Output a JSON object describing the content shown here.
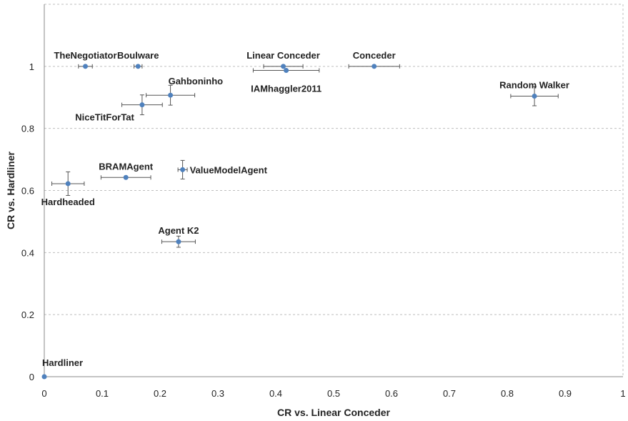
{
  "chart_data": {
    "type": "scatter",
    "title": "",
    "xlabel": "CR vs. Linear Conceder",
    "ylabel": "CR vs. Hardliner",
    "xlim": [
      0,
      1
    ],
    "ylim": [
      0,
      1.2
    ],
    "x_ticks": [
      "0",
      "0.1",
      "0.2",
      "0.3",
      "0.4",
      "0.5",
      "0.6",
      "0.7",
      "0.8",
      "0.9",
      "1"
    ],
    "y_ticks": [
      "0",
      "0.2",
      "0.4",
      "0.6",
      "0.8",
      "1"
    ],
    "y_tick_values": [
      0,
      0.2,
      0.4,
      0.6,
      0.8,
      1
    ],
    "grid": "horizontal dashed",
    "marker_color": "#4f81bd",
    "error_bar_color": "#555555",
    "points": [
      {
        "label": "TheNegotiator",
        "x": 0.071,
        "y": 1.0,
        "xerr": 0.012,
        "yerr": 0.0,
        "label_pos": "above"
      },
      {
        "label": "Boulware",
        "x": 0.162,
        "y": 1.0,
        "xerr": 0.007,
        "yerr": 0.0,
        "label_pos": "above"
      },
      {
        "label": "Linear Conceder",
        "x": 0.413,
        "y": 1.0,
        "xerr": 0.034,
        "yerr": 0.0,
        "label_pos": "above"
      },
      {
        "label": "IAMhaggler2011",
        "x": 0.418,
        "y": 0.987,
        "xerr": 0.057,
        "yerr": 0.0,
        "label_pos": "below"
      },
      {
        "label": "Conceder",
        "x": 0.57,
        "y": 1.0,
        "xerr": 0.044,
        "yerr": 0.0,
        "label_pos": "above"
      },
      {
        "label": "Random Walker",
        "x": 0.847,
        "y": 0.904,
        "xerr": 0.041,
        "yerr": 0.031,
        "label_pos": "above"
      },
      {
        "label": "Gahboninho",
        "x": 0.218,
        "y": 0.907,
        "xerr": 0.042,
        "yerr": 0.032,
        "label_pos": "above-right"
      },
      {
        "label": "NiceTitForTat",
        "x": 0.169,
        "y": 0.876,
        "xerr": 0.035,
        "yerr": 0.032,
        "label_pos": "below-left"
      },
      {
        "label": "BRAMAgent",
        "x": 0.141,
        "y": 0.642,
        "xerr": 0.043,
        "yerr": 0.0,
        "label_pos": "above"
      },
      {
        "label": "ValueModelAgent",
        "x": 0.239,
        "y": 0.667,
        "xerr": 0.008,
        "yerr": 0.03,
        "label_pos": "right"
      },
      {
        "label": "Hardheaded",
        "x": 0.041,
        "y": 0.622,
        "xerr": 0.028,
        "yerr": 0.038,
        "label_pos": "below"
      },
      {
        "label": "Agent K2",
        "x": 0.232,
        "y": 0.435,
        "xerr": 0.029,
        "yerr": 0.018,
        "label_pos": "above"
      },
      {
        "label": "Hardliner",
        "x": 0.0,
        "y": 0.0,
        "xerr": 0.0,
        "yerr": 0.0,
        "label_pos": "above-right"
      }
    ]
  }
}
